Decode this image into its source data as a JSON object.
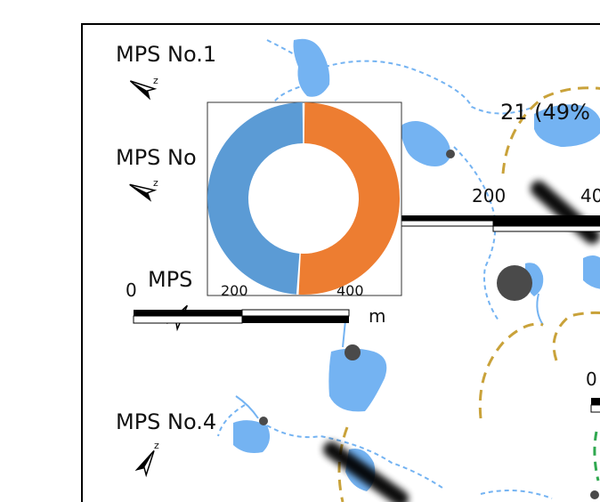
{
  "labels": {
    "mps1": "MPS No.1",
    "mps2": "MPS No",
    "mps3": "MPS",
    "mps4": "MPS No.4",
    "percent": "21 (49%"
  },
  "scalebars": {
    "left": {
      "start": "0",
      "mid": "200",
      "end": "400",
      "unit": "m"
    },
    "right": {
      "start": "200",
      "end": "40"
    },
    "bottom_right": {
      "start": "0"
    }
  },
  "chart_data": {
    "type": "pie",
    "donut": true,
    "slices": [
      {
        "value": 51,
        "color": "#ed7d31"
      },
      {
        "value": 49,
        "color": "#5b9bd5"
      }
    ]
  },
  "colors": {
    "water": "#74b3f2",
    "dashed_boundary": "#c9a23a",
    "dashed_green": "#2fa84f",
    "stream": "#74b3f2",
    "node": "#4a4a4a"
  },
  "icons": [
    "north-arrow-icon",
    "north-arrow-icon",
    "north-arrow-icon",
    "north-arrow-icon"
  ]
}
